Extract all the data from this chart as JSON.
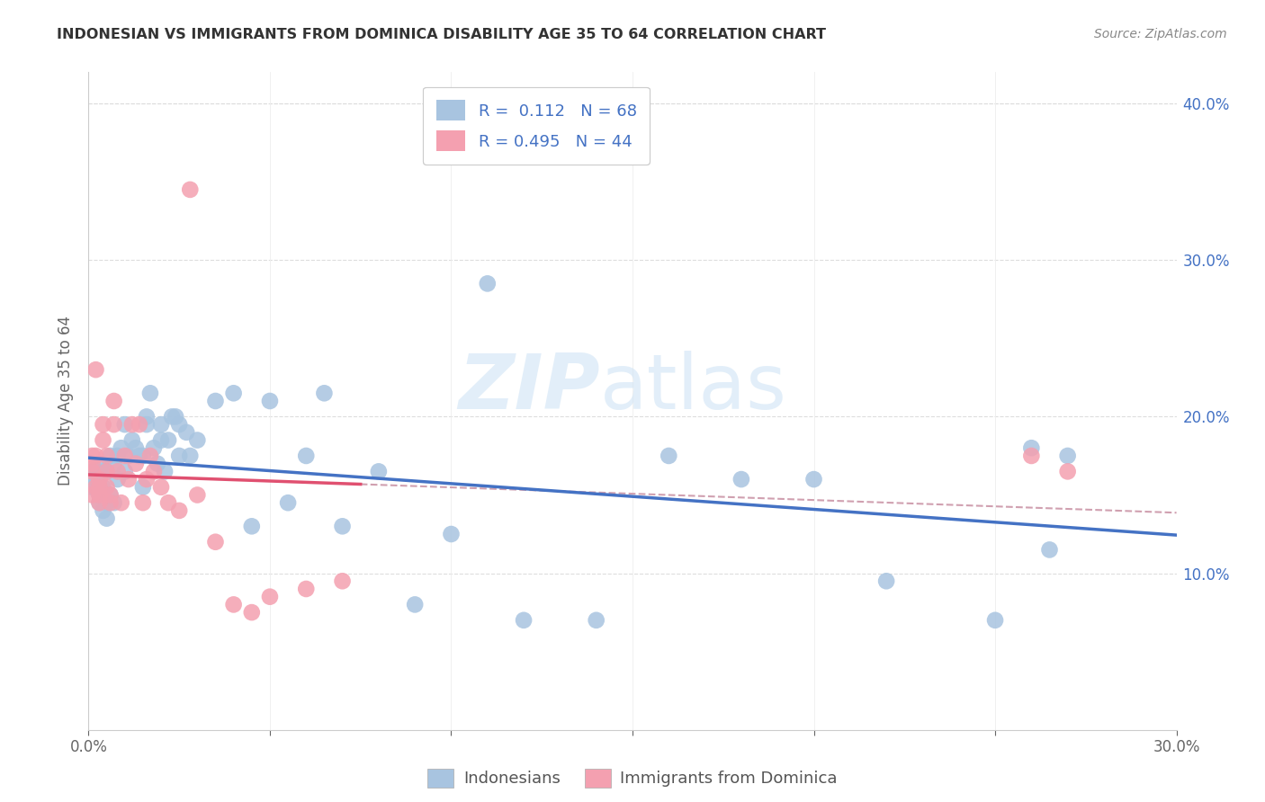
{
  "title": "INDONESIAN VS IMMIGRANTS FROM DOMINICA DISABILITY AGE 35 TO 64 CORRELATION CHART",
  "source": "Source: ZipAtlas.com",
  "ylabel": "Disability Age 35 to 64",
  "r_blue": 0.112,
  "n_blue": 68,
  "r_pink": 0.495,
  "n_pink": 44,
  "legend_labels": [
    "Indonesians",
    "Immigrants from Dominica"
  ],
  "blue_color": "#a8c4e0",
  "pink_color": "#f4a0b0",
  "trend_blue": "#4472c4",
  "trend_pink": "#e05070",
  "dashed_color": "#d0a0b0",
  "watermark": "ZIPatlas",
  "xlim": [
    0.0,
    0.3
  ],
  "ylim": [
    0.0,
    0.42
  ],
  "x_ticks": [
    0.0,
    0.05,
    0.1,
    0.15,
    0.2,
    0.25,
    0.3
  ],
  "x_tick_labels": [
    "0.0%",
    "",
    "",
    "",
    "",
    "",
    "30.0%"
  ],
  "y_ticks_right": [
    0.1,
    0.2,
    0.3,
    0.4
  ],
  "y_tick_labels_right": [
    "10.0%",
    "20.0%",
    "30.0%",
    "40.0%"
  ],
  "blue_x": [
    0.001,
    0.001,
    0.002,
    0.002,
    0.002,
    0.003,
    0.003,
    0.003,
    0.003,
    0.004,
    0.004,
    0.004,
    0.005,
    0.005,
    0.005,
    0.006,
    0.006,
    0.007,
    0.007,
    0.008,
    0.008,
    0.009,
    0.01,
    0.01,
    0.011,
    0.012,
    0.013,
    0.014,
    0.015,
    0.015,
    0.016,
    0.016,
    0.017,
    0.018,
    0.019,
    0.02,
    0.02,
    0.021,
    0.022,
    0.023,
    0.024,
    0.025,
    0.025,
    0.027,
    0.028,
    0.03,
    0.035,
    0.04,
    0.045,
    0.05,
    0.055,
    0.06,
    0.065,
    0.07,
    0.08,
    0.09,
    0.1,
    0.11,
    0.12,
    0.14,
    0.16,
    0.18,
    0.2,
    0.22,
    0.25,
    0.26,
    0.265,
    0.27
  ],
  "blue_y": [
    0.165,
    0.155,
    0.155,
    0.16,
    0.165,
    0.145,
    0.15,
    0.155,
    0.17,
    0.14,
    0.155,
    0.165,
    0.135,
    0.145,
    0.165,
    0.15,
    0.175,
    0.145,
    0.17,
    0.16,
    0.175,
    0.18,
    0.165,
    0.195,
    0.175,
    0.185,
    0.18,
    0.175,
    0.155,
    0.175,
    0.195,
    0.2,
    0.215,
    0.18,
    0.17,
    0.185,
    0.195,
    0.165,
    0.185,
    0.2,
    0.2,
    0.175,
    0.195,
    0.19,
    0.175,
    0.185,
    0.21,
    0.215,
    0.13,
    0.21,
    0.145,
    0.175,
    0.215,
    0.13,
    0.165,
    0.08,
    0.125,
    0.285,
    0.07,
    0.07,
    0.175,
    0.16,
    0.16,
    0.095,
    0.07,
    0.18,
    0.115,
    0.175
  ],
  "pink_x": [
    0.001,
    0.001,
    0.001,
    0.001,
    0.002,
    0.002,
    0.002,
    0.003,
    0.003,
    0.003,
    0.003,
    0.004,
    0.004,
    0.005,
    0.005,
    0.005,
    0.006,
    0.006,
    0.007,
    0.007,
    0.008,
    0.009,
    0.01,
    0.011,
    0.012,
    0.013,
    0.014,
    0.015,
    0.016,
    0.017,
    0.018,
    0.02,
    0.022,
    0.025,
    0.028,
    0.03,
    0.035,
    0.04,
    0.045,
    0.05,
    0.06,
    0.07,
    0.26,
    0.27
  ],
  "pink_y": [
    0.15,
    0.165,
    0.17,
    0.175,
    0.23,
    0.155,
    0.175,
    0.145,
    0.15,
    0.155,
    0.16,
    0.185,
    0.195,
    0.155,
    0.165,
    0.175,
    0.145,
    0.15,
    0.195,
    0.21,
    0.165,
    0.145,
    0.175,
    0.16,
    0.195,
    0.17,
    0.195,
    0.145,
    0.16,
    0.175,
    0.165,
    0.155,
    0.145,
    0.14,
    0.345,
    0.15,
    0.12,
    0.08,
    0.075,
    0.085,
    0.09,
    0.095,
    0.175,
    0.165
  ]
}
